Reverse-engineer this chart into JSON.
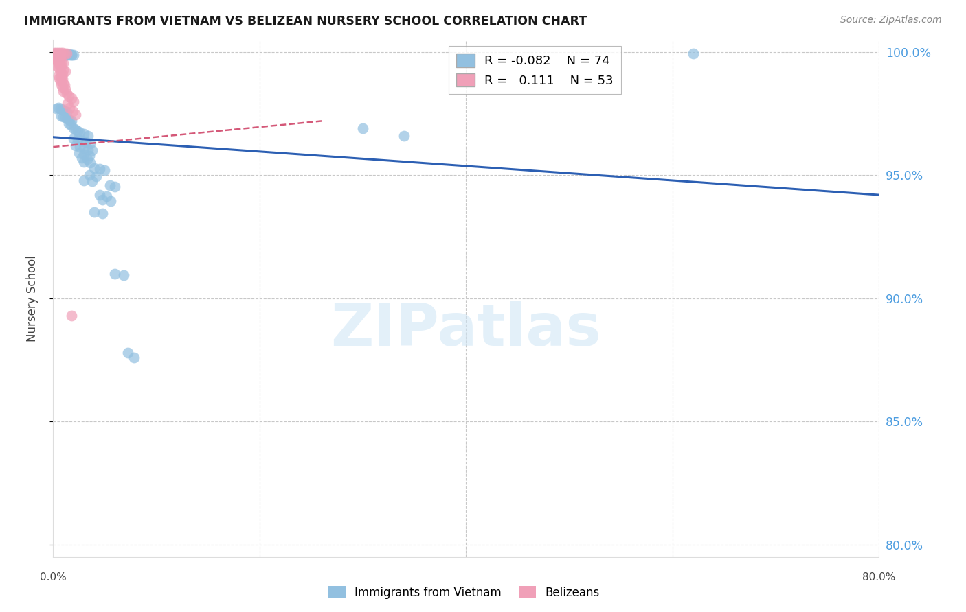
{
  "title": "IMMIGRANTS FROM VIETNAM VS BELIZEAN NURSERY SCHOOL CORRELATION CHART",
  "source": "Source: ZipAtlas.com",
  "ylabel": "Nursery School",
  "ylabel_right_labels": [
    "100.0%",
    "95.0%",
    "90.0%",
    "85.0%",
    "80.0%"
  ],
  "yticks": [
    1.0,
    0.95,
    0.9,
    0.85,
    0.8
  ],
  "legend_blue_r": "-0.082",
  "legend_blue_n": "74",
  "legend_pink_r": "0.111",
  "legend_pink_n": "53",
  "blue_scatter": [
    [
      0.001,
      0.9995
    ],
    [
      0.004,
      0.9993
    ],
    [
      0.006,
      0.9993
    ],
    [
      0.008,
      0.9992
    ],
    [
      0.01,
      0.9992
    ],
    [
      0.012,
      0.9992
    ],
    [
      0.014,
      0.9991
    ],
    [
      0.016,
      0.9991
    ],
    [
      0.018,
      0.999
    ],
    [
      0.02,
      0.999
    ],
    [
      0.016,
      0.9988
    ],
    [
      0.018,
      0.9988
    ],
    [
      0.012,
      0.9985
    ],
    [
      0.008,
      0.9985
    ],
    [
      0.006,
      0.9984
    ],
    [
      0.003,
      0.977
    ],
    [
      0.005,
      0.9775
    ],
    [
      0.007,
      0.977
    ],
    [
      0.009,
      0.9765
    ],
    [
      0.011,
      0.976
    ],
    [
      0.013,
      0.9758
    ],
    [
      0.008,
      0.974
    ],
    [
      0.01,
      0.9738
    ],
    [
      0.012,
      0.9735
    ],
    [
      0.014,
      0.973
    ],
    [
      0.016,
      0.9725
    ],
    [
      0.018,
      0.972
    ],
    [
      0.015,
      0.971
    ],
    [
      0.017,
      0.9705
    ],
    [
      0.02,
      0.969
    ],
    [
      0.022,
      0.9685
    ],
    [
      0.024,
      0.968
    ],
    [
      0.026,
      0.9675
    ],
    [
      0.03,
      0.9668
    ],
    [
      0.034,
      0.966
    ],
    [
      0.02,
      0.965
    ],
    [
      0.024,
      0.9645
    ],
    [
      0.028,
      0.964
    ],
    [
      0.032,
      0.9635
    ],
    [
      0.036,
      0.963
    ],
    [
      0.022,
      0.962
    ],
    [
      0.026,
      0.9615
    ],
    [
      0.03,
      0.961
    ],
    [
      0.034,
      0.9605
    ],
    [
      0.038,
      0.96
    ],
    [
      0.025,
      0.959
    ],
    [
      0.03,
      0.9585
    ],
    [
      0.035,
      0.958
    ],
    [
      0.028,
      0.957
    ],
    [
      0.033,
      0.9565
    ],
    [
      0.03,
      0.9555
    ],
    [
      0.036,
      0.955
    ],
    [
      0.04,
      0.953
    ],
    [
      0.045,
      0.9525
    ],
    [
      0.05,
      0.952
    ],
    [
      0.035,
      0.95
    ],
    [
      0.042,
      0.9495
    ],
    [
      0.03,
      0.948
    ],
    [
      0.038,
      0.9475
    ],
    [
      0.055,
      0.946
    ],
    [
      0.06,
      0.9455
    ],
    [
      0.045,
      0.942
    ],
    [
      0.052,
      0.9415
    ],
    [
      0.048,
      0.94
    ],
    [
      0.056,
      0.9395
    ],
    [
      0.04,
      0.935
    ],
    [
      0.048,
      0.9345
    ],
    [
      0.06,
      0.91
    ],
    [
      0.068,
      0.9095
    ],
    [
      0.072,
      0.878
    ],
    [
      0.078,
      0.876
    ],
    [
      0.62,
      0.9993
    ],
    [
      0.3,
      0.969
    ],
    [
      0.34,
      0.966
    ]
  ],
  "pink_scatter": [
    [
      0.001,
      0.9998
    ],
    [
      0.003,
      0.9997
    ],
    [
      0.005,
      0.9997
    ],
    [
      0.007,
      0.9996
    ],
    [
      0.009,
      0.9996
    ],
    [
      0.011,
      0.9995
    ],
    [
      0.013,
      0.9994
    ],
    [
      0.002,
      0.9993
    ],
    [
      0.004,
      0.9992
    ],
    [
      0.006,
      0.9992
    ],
    [
      0.001,
      0.999
    ],
    [
      0.003,
      0.9989
    ],
    [
      0.005,
      0.9988
    ],
    [
      0.002,
      0.9986
    ],
    [
      0.004,
      0.9985
    ],
    [
      0.001,
      0.9982
    ],
    [
      0.003,
      0.9981
    ],
    [
      0.005,
      0.9978
    ],
    [
      0.007,
      0.9975
    ],
    [
      0.002,
      0.9972
    ],
    [
      0.004,
      0.997
    ],
    [
      0.003,
      0.9965
    ],
    [
      0.005,
      0.9962
    ],
    [
      0.008,
      0.9958
    ],
    [
      0.01,
      0.9955
    ],
    [
      0.006,
      0.995
    ],
    [
      0.008,
      0.9945
    ],
    [
      0.004,
      0.994
    ],
    [
      0.006,
      0.9935
    ],
    [
      0.01,
      0.9928
    ],
    [
      0.012,
      0.9922
    ],
    [
      0.007,
      0.9918
    ],
    [
      0.009,
      0.9912
    ],
    [
      0.005,
      0.9905
    ],
    [
      0.008,
      0.99
    ],
    [
      0.006,
      0.9895
    ],
    [
      0.009,
      0.989
    ],
    [
      0.007,
      0.9882
    ],
    [
      0.01,
      0.9875
    ],
    [
      0.008,
      0.987
    ],
    [
      0.011,
      0.9865
    ],
    [
      0.009,
      0.9858
    ],
    [
      0.012,
      0.985
    ],
    [
      0.01,
      0.984
    ],
    [
      0.013,
      0.9832
    ],
    [
      0.015,
      0.9822
    ],
    [
      0.018,
      0.9812
    ],
    [
      0.02,
      0.98
    ],
    [
      0.014,
      0.979
    ],
    [
      0.016,
      0.9775
    ],
    [
      0.019,
      0.976
    ],
    [
      0.022,
      0.9745
    ],
    [
      0.018,
      0.893
    ]
  ],
  "blue_line": [
    [
      0.0,
      0.9655
    ],
    [
      0.8,
      0.942
    ]
  ],
  "pink_line": [
    [
      0.0,
      0.9615
    ],
    [
      0.26,
      0.972
    ]
  ],
  "xlim": [
    0.0,
    0.8
  ],
  "ylim": [
    0.795,
    1.005
  ],
  "xticks": [
    0.0,
    0.2,
    0.4,
    0.6,
    0.8
  ],
  "background_color": "#ffffff",
  "blue_color": "#92c0e0",
  "pink_color": "#f0a0b8",
  "blue_line_color": "#2c5fb3",
  "pink_line_color": "#d45878",
  "grid_color": "#c8c8c8",
  "right_axis_color": "#4d9de0",
  "watermark": "ZIPatlas"
}
